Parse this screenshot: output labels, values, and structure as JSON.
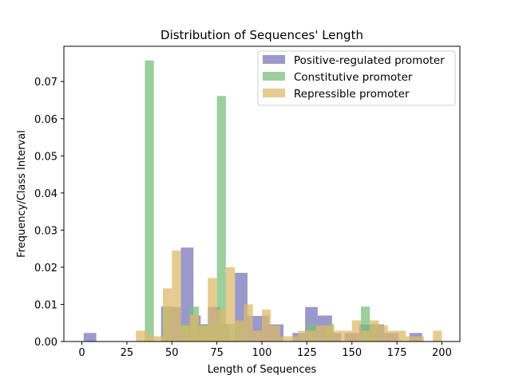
{
  "chart_data": {
    "type": "bar",
    "title": "Distribution of Sequences' Length",
    "xlabel": "Length of Sequences",
    "ylabel": "Frequency/Class Interval",
    "xlim": [
      -10,
      210
    ],
    "ylim": [
      0,
      0.0795
    ],
    "x_ticks": [
      0,
      25,
      50,
      75,
      100,
      125,
      150,
      175,
      200
    ],
    "x_tick_labels": [
      "0",
      "25",
      "50",
      "75",
      "100",
      "125",
      "150",
      "175",
      "200"
    ],
    "y_ticks": [
      0,
      0.01,
      0.02,
      0.03,
      0.04,
      0.05,
      0.06,
      0.07
    ],
    "y_tick_labels": [
      "0.00",
      "0.01",
      "0.02",
      "0.03",
      "0.04",
      "0.05",
      "0.06",
      "0.07"
    ],
    "grid": false,
    "legend_position": "top-right",
    "series": [
      {
        "name": "Positive-regulated promoter",
        "color": "#7777bb",
        "bins": [
          [
            1,
            8,
            0.0023
          ],
          [
            44,
            51,
            0.0094
          ],
          [
            51,
            55,
            0.0093
          ],
          [
            55,
            62,
            0.0253
          ],
          [
            62,
            66,
            0.007
          ],
          [
            66,
            70,
            0.0046
          ],
          [
            70,
            77,
            0.0093
          ],
          [
            77,
            82,
            0.0046
          ],
          [
            85,
            92,
            0.0185
          ],
          [
            92,
            100,
            0.0069
          ],
          [
            100,
            104,
            0.007
          ],
          [
            104,
            112,
            0.0046
          ],
          [
            117,
            124,
            0.0023
          ],
          [
            124,
            131,
            0.0093
          ],
          [
            131,
            139,
            0.007
          ],
          [
            139,
            144,
            0.0023
          ],
          [
            146,
            154,
            0.0023
          ],
          [
            154,
            161,
            0.0046
          ],
          [
            161,
            168,
            0.0046
          ],
          [
            168,
            176,
            0.0023
          ],
          [
            182,
            189,
            0.0023
          ]
        ]
      },
      {
        "name": "Constitutive promoter",
        "color": "#7cbf7c",
        "bins": [
          [
            35,
            40,
            0.0757
          ],
          [
            45,
            50,
            0.0094
          ],
          [
            55,
            60,
            0.0047
          ],
          [
            60,
            65,
            0.0094
          ],
          [
            65,
            70,
            0.0047
          ],
          [
            70,
            75,
            0.0047
          ],
          [
            75,
            80,
            0.0661
          ],
          [
            80,
            85,
            0.0047
          ],
          [
            85,
            90,
            0.0047
          ],
          [
            125,
            130,
            0.0047
          ],
          [
            135,
            140,
            0.0047
          ],
          [
            155,
            160,
            0.0094
          ],
          [
            160,
            165,
            0.0047
          ]
        ]
      },
      {
        "name": "Repressible promoter",
        "color": "#deb96b",
        "bins": [
          [
            30,
            37,
            0.0029
          ],
          [
            37,
            40,
            0.0014
          ],
          [
            40,
            45,
            0.0014
          ],
          [
            45,
            50,
            0.0143
          ],
          [
            50,
            55,
            0.0245
          ],
          [
            55,
            60,
            0.0043
          ],
          [
            60,
            65,
            0.0072
          ],
          [
            65,
            70,
            0.0043
          ],
          [
            70,
            75,
            0.0171
          ],
          [
            75,
            80,
            0.0086
          ],
          [
            80,
            85,
            0.02
          ],
          [
            85,
            90,
            0.0057
          ],
          [
            90,
            95,
            0.01
          ],
          [
            95,
            100,
            0.0029
          ],
          [
            100,
            105,
            0.0086
          ],
          [
            105,
            110,
            0.0043
          ],
          [
            110,
            115,
            0.0014
          ],
          [
            115,
            120,
            0.0014
          ],
          [
            120,
            125,
            0.0029
          ],
          [
            125,
            130,
            0.0029
          ],
          [
            130,
            135,
            0.0043
          ],
          [
            135,
            140,
            0.0043
          ],
          [
            140,
            145,
            0.0029
          ],
          [
            145,
            150,
            0.0029
          ],
          [
            150,
            155,
            0.0057
          ],
          [
            155,
            160,
            0.0029
          ],
          [
            160,
            165,
            0.0057
          ],
          [
            165,
            170,
            0.0043
          ],
          [
            170,
            175,
            0.0029
          ],
          [
            175,
            180,
            0.0029
          ],
          [
            180,
            185,
            0.0014
          ],
          [
            185,
            190,
            0.0014
          ],
          [
            195,
            200,
            0.0029
          ]
        ]
      }
    ]
  }
}
